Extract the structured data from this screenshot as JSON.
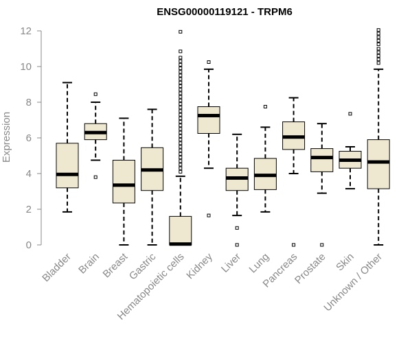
{
  "chart_data": {
    "type": "boxplot",
    "title": "ENSG00000119121 - TRPM6",
    "xlabel": "",
    "ylabel": "Expression",
    "ylim": [
      0,
      12
    ],
    "yticks": [
      0,
      2,
      4,
      6,
      8,
      10,
      12
    ],
    "grid": false,
    "colors": {
      "box_fill": "#efe8d0",
      "box_stroke": "#000000",
      "median": "#000000",
      "axis": "#888888"
    },
    "categories": [
      "Bladder",
      "Brain",
      "Breast",
      "Gastric",
      "Hematopoietic cells",
      "Kidney",
      "Liver",
      "Lung",
      "Pancreas",
      "Prostate",
      "Skin",
      "Unknown / Other"
    ],
    "boxes": [
      {
        "category": "Bladder",
        "whisker_low": 1.85,
        "q1": 3.2,
        "median": 3.95,
        "q3": 5.7,
        "whisker_high": 9.1,
        "outliers": []
      },
      {
        "category": "Brain",
        "whisker_low": 4.75,
        "q1": 5.9,
        "median": 6.3,
        "q3": 6.8,
        "whisker_high": 8.0,
        "outliers": [
          3.8,
          8.45
        ]
      },
      {
        "category": "Breast",
        "whisker_low": 0.0,
        "q1": 2.35,
        "median": 3.35,
        "q3": 4.75,
        "whisker_high": 7.1,
        "outliers": []
      },
      {
        "category": "Gastric",
        "whisker_low": 0.0,
        "q1": 3.05,
        "median": 4.2,
        "q3": 5.45,
        "whisker_high": 7.6,
        "outliers": []
      },
      {
        "category": "Hematopoietic cells",
        "whisker_low": 0.0,
        "q1": 0.0,
        "median": 0.05,
        "q3": 1.6,
        "whisker_high": 3.85,
        "outliers": [
          4.1,
          4.3,
          4.5,
          4.7,
          4.9,
          5.1,
          5.3,
          5.5,
          5.7,
          5.9,
          6.1,
          6.3,
          6.5,
          6.7,
          6.9,
          7.1,
          7.3,
          7.5,
          7.7,
          7.9,
          8.1,
          8.3,
          8.5,
          8.7,
          8.9,
          9.1,
          9.3,
          9.5,
          9.7,
          9.9,
          10.1,
          10.3,
          10.5,
          10.85,
          11.95
        ]
      },
      {
        "category": "Kidney",
        "whisker_low": 4.3,
        "q1": 6.25,
        "median": 7.25,
        "q3": 7.75,
        "whisker_high": 9.85,
        "outliers": [
          1.65,
          10.25
        ]
      },
      {
        "category": "Liver",
        "whisker_low": 1.65,
        "q1": 3.05,
        "median": 3.75,
        "q3": 4.3,
        "whisker_high": 6.2,
        "outliers": [
          0.0,
          0.95
        ]
      },
      {
        "category": "Lung",
        "whisker_low": 1.85,
        "q1": 3.1,
        "median": 3.9,
        "q3": 4.85,
        "whisker_high": 6.6,
        "outliers": [
          7.75
        ]
      },
      {
        "category": "Pancreas",
        "whisker_low": 4.0,
        "q1": 5.35,
        "median": 6.05,
        "q3": 6.9,
        "whisker_high": 8.25,
        "outliers": [
          0.0
        ]
      },
      {
        "category": "Prostate",
        "whisker_low": 2.9,
        "q1": 4.1,
        "median": 4.9,
        "q3": 5.4,
        "whisker_high": 6.8,
        "outliers": [
          0.0
        ]
      },
      {
        "category": "Skin",
        "whisker_low": 3.15,
        "q1": 4.3,
        "median": 4.75,
        "q3": 5.25,
        "whisker_high": 5.5,
        "outliers": [
          7.35
        ]
      },
      {
        "category": "Unknown / Other",
        "whisker_low": 0.0,
        "q1": 3.15,
        "median": 4.65,
        "q3": 5.9,
        "whisker_high": 9.85,
        "outliers": [
          10.2,
          10.4,
          10.6,
          10.8,
          11.0,
          11.25,
          11.45,
          11.65,
          11.85,
          12.05
        ]
      }
    ]
  }
}
